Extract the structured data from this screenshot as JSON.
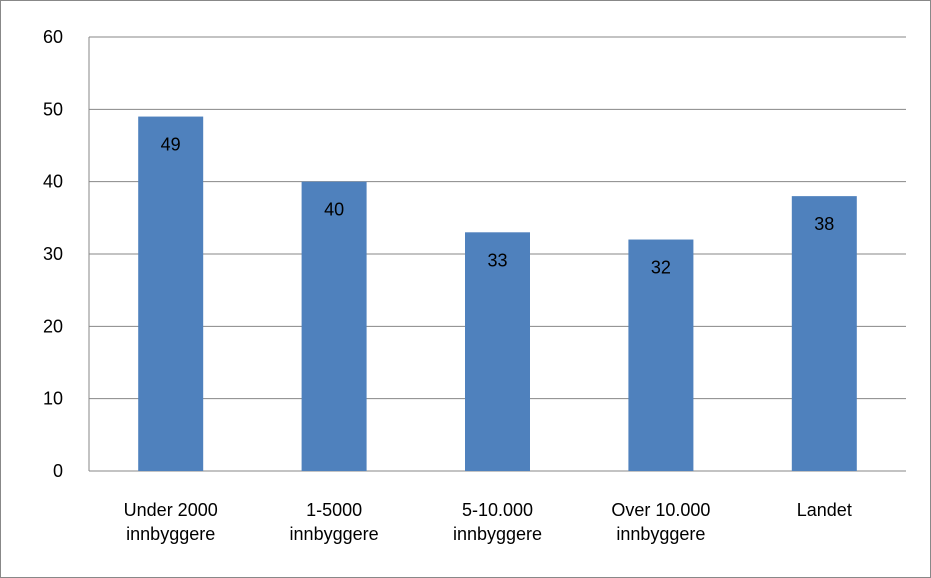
{
  "chart_data": {
    "type": "bar",
    "categories": [
      [
        "Under 2000",
        "innbyggere"
      ],
      [
        "1-5000",
        "innbyggere"
      ],
      [
        "5-10.000",
        "innbyggere"
      ],
      [
        "Over 10.000",
        "innbyggere"
      ],
      [
        "Landet"
      ]
    ],
    "values": [
      49,
      40,
      33,
      32,
      38
    ],
    "ylim": [
      0,
      60
    ],
    "yticks": [
      "0",
      "10",
      "20",
      "30",
      "40",
      "50",
      "60"
    ],
    "grid": true,
    "bar_color": "#4f81bd",
    "gridline_color": "#878787",
    "data_labels": [
      "49",
      "40",
      "33",
      "32",
      "38"
    ]
  }
}
